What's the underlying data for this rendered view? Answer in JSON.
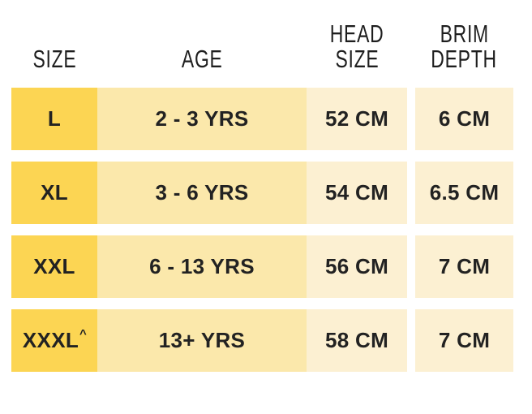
{
  "table": {
    "headers": [
      {
        "line1": "SIZE"
      },
      {
        "line1": "AGE"
      },
      {
        "line1": "HEAD",
        "line2": "SIZE"
      },
      {
        "line1": "BRIM",
        "line2": "DEPTH"
      }
    ],
    "rows": [
      {
        "size": "L",
        "age": "2 - 3 YRS",
        "head_size": "52 CM",
        "brim_depth": "6 CM"
      },
      {
        "size": "XL",
        "age": "3 - 6 YRS",
        "head_size": "54 CM",
        "brim_depth": "6.5 CM"
      },
      {
        "size": "XXL",
        "age": "6 - 13 YRS",
        "head_size": "56 CM",
        "brim_depth": "7 CM"
      },
      {
        "size": "XXXL",
        "size_sup": "^",
        "age": "13+ YRS",
        "head_size": "58 CM",
        "brim_depth": "7 CM"
      }
    ],
    "colors": {
      "size_cell": "#FCD553",
      "age_cell": "#FBE8AB",
      "value_cell": "#FCF0D2",
      "text": "#222222",
      "background": "#FFFFFF"
    }
  },
  "chart_data": {
    "type": "table",
    "title": "",
    "columns": [
      "SIZE",
      "AGE",
      "HEAD SIZE",
      "BRIM DEPTH"
    ],
    "rows": [
      [
        "L",
        "2 - 3 YRS",
        "52 CM",
        "6 CM"
      ],
      [
        "XL",
        "3 - 6 YRS",
        "54 CM",
        "6.5 CM"
      ],
      [
        "XXL",
        "6 - 13 YRS",
        "56 CM",
        "7 CM"
      ],
      [
        "XXXL^",
        "13+ YRS",
        "58 CM",
        "7 CM"
      ]
    ]
  }
}
